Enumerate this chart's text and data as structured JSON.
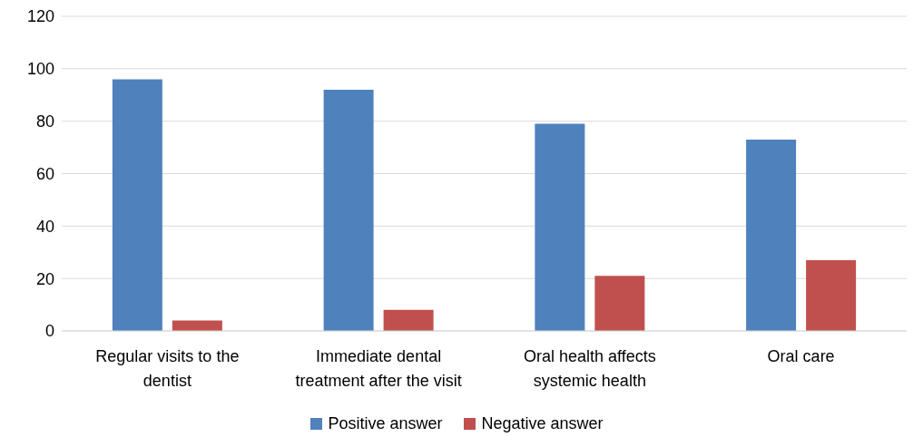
{
  "chart_data": {
    "type": "bar",
    "categories": [
      "Regular visits to the dentist",
      "Immediate dental treatment after the visit",
      "Oral health affects systemic health",
      "Oral care"
    ],
    "series": [
      {
        "name": "Positive answer",
        "color": "#4f81bd",
        "values": [
          96,
          92,
          79,
          73
        ]
      },
      {
        "name": "Negative answer",
        "color": "#c0504d",
        "values": [
          4,
          8,
          21,
          27
        ]
      }
    ],
    "ylim": [
      0,
      120
    ],
    "yticks": [
      0,
      20,
      40,
      60,
      80,
      100,
      120
    ],
    "grid": "y",
    "legend": "bottom"
  }
}
